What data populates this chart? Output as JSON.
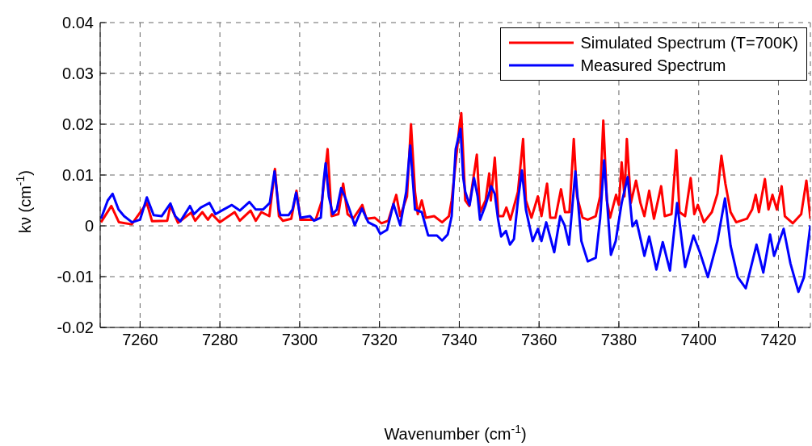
{
  "chart_data": {
    "type": "line",
    "xlabel": "Wavenumber (cm$^{-1}$)",
    "ylabel": "kν (cm$^{-1}$)",
    "xlim": [
      7250,
      7428
    ],
    "xticks": [
      7260,
      7280,
      7300,
      7320,
      7340,
      7360,
      7380,
      7400,
      7420
    ],
    "ylim": [
      -0.02,
      0.04
    ],
    "yticks": [
      -0.02,
      -0.01,
      0,
      0.01,
      0.02,
      0.03,
      0.04
    ],
    "grid": true,
    "legend": "top right",
    "marker": "none",
    "line_style": "solid",
    "series": [
      {
        "name": "Simulated Spectrum (T=700K)",
        "color": "#ff0000",
        "x": [
          7250.2,
          7252.8,
          7254.7,
          7257.9,
          7261.7,
          7263,
          7266.8,
          7267.6,
          7269.5,
          7272.8,
          7273.8,
          7275.6,
          7277,
          7278,
          7280,
          7283.7,
          7285,
          7287.7,
          7289,
          7290.4,
          7292.4,
          7293.8,
          7294.8,
          7295.8,
          7297.9,
          7299.2,
          7300.2,
          7304,
          7305.6,
          7307,
          7308,
          7309.7,
          7310.9,
          7312,
          7313.4,
          7315.7,
          7316.7,
          7318.8,
          7320.5,
          7322.2,
          7324.2,
          7325.2,
          7326.9,
          7327.9,
          7328.9,
          7329.6,
          7330.6,
          7331.6,
          7333.7,
          7335.7,
          7337.4,
          7338.1,
          7340.1,
          7340.5,
          7341.5,
          7342.5,
          7343.2,
          7344.4,
          7345.2,
          7346.6,
          7347.5,
          7347.9,
          7348.9,
          7349.8,
          7351,
          7351.8,
          7352.8,
          7354.7,
          7356,
          7356.7,
          7358.1,
          7359.7,
          7360.6,
          7362,
          7362.8,
          7364.1,
          7365.5,
          7366.5,
          7367.6,
          7368.7,
          7369.5,
          7370.9,
          7372.2,
          7374.2,
          7375.3,
          7376.1,
          7377,
          7377.8,
          7379.3,
          7380,
          7380.7,
          7381.4,
          7382,
          7383,
          7384.3,
          7385.4,
          7386.4,
          7387.6,
          7388.8,
          7390.6,
          7391.5,
          7393.2,
          7394.4,
          7395.2,
          7396.6,
          7398,
          7398.9,
          7399.8,
          7401.3,
          7403.3,
          7404.7,
          7405.7,
          7406.7,
          7408,
          7409.4,
          7412.1,
          7413.4,
          7414.3,
          7415.1,
          7416.6,
          7417.5,
          7418.5,
          7419.6,
          7420.8,
          7421.6,
          7423.6,
          7425.7,
          7427,
          7428
        ],
        "values": [
          0.0007,
          0.0039,
          0.0007,
          0.0003,
          0.0045,
          0.0009,
          0.001,
          0.004,
          0.0006,
          0.0026,
          0.001,
          0.0027,
          0.0012,
          0.0023,
          0.0007,
          0.0027,
          0.001,
          0.003,
          0.001,
          0.0027,
          0.0019,
          0.0112,
          0.0019,
          0.001,
          0.0014,
          0.0069,
          0.0012,
          0.0012,
          0.005,
          0.0151,
          0.0019,
          0.0023,
          0.0083,
          0.0023,
          0.0014,
          0.0041,
          0.0014,
          0.0016,
          0.0005,
          0.001,
          0.0061,
          0.0019,
          0.0058,
          0.02,
          0.0067,
          0.0023,
          0.005,
          0.0016,
          0.0019,
          0.0007,
          0.0019,
          0.005,
          0.02,
          0.0222,
          0.005,
          0.0039,
          0.0076,
          0.014,
          0.0027,
          0.005,
          0.0103,
          0.005,
          0.0134,
          0.0019,
          0.0019,
          0.0036,
          0.0012,
          0.0067,
          0.0171,
          0.005,
          0.0016,
          0.0058,
          0.0019,
          0.0083,
          0.0016,
          0.0016,
          0.0072,
          0.0027,
          0.0027,
          0.0171,
          0.0058,
          0.0016,
          0.0012,
          0.0019,
          0.0058,
          0.0207,
          0.005,
          0.0016,
          0.0061,
          0.0041,
          0.0125,
          0.0058,
          0.0171,
          0.0045,
          0.0089,
          0.0045,
          0.0019,
          0.0069,
          0.0014,
          0.0078,
          0.0019,
          0.0023,
          0.0149,
          0.0027,
          0.0019,
          0.0094,
          0.0023,
          0.0041,
          0.0007,
          0.0027,
          0.0063,
          0.0138,
          0.0083,
          0.0027,
          0.0007,
          0.0014,
          0.0032,
          0.0061,
          0.0027,
          0.0092,
          0.0032,
          0.0061,
          0.0032,
          0.0078,
          0.0019,
          0.0005,
          0.0023,
          0.0089,
          0.0014
        ]
      },
      {
        "name": "Measured Spectrum",
        "color": "#0000ff",
        "x": [
          7250.2,
          7251.9,
          7253.1,
          7254.6,
          7256,
          7258,
          7260,
          7261.7,
          7263.4,
          7265.4,
          7267.6,
          7268.8,
          7270.1,
          7272.5,
          7273.5,
          7275.2,
          7277.4,
          7278.9,
          7280.9,
          7283,
          7285,
          7287.4,
          7289,
          7290.8,
          7292.5,
          7293.7,
          7294.8,
          7295.2,
          7297.2,
          7298.2,
          7299.1,
          7300.2,
          7302.6,
          7303.6,
          7305.3,
          7306,
          7306.5,
          7307.3,
          7308.3,
          7309.3,
          7310.4,
          7311.5,
          7312.7,
          7313.8,
          7315.6,
          7317.2,
          7319.2,
          7320.2,
          7321.9,
          7323.5,
          7325.2,
          7326.7,
          7327.7,
          7328.9,
          7330.6,
          7332.2,
          7334.4,
          7335.7,
          7337.1,
          7338.1,
          7339.1,
          7340.3,
          7341,
          7341.5,
          7342.6,
          7343.7,
          7344.6,
          7345.2,
          7346.6,
          7348,
          7348.9,
          7349.7,
          7350.5,
          7351.7,
          7352.7,
          7353.7,
          7354.7,
          7355.7,
          7356.7,
          7358.4,
          7359.7,
          7360.6,
          7361.8,
          7363.8,
          7365.3,
          7366.4,
          7367.5,
          7369.1,
          7370.6,
          7372.2,
          7374.2,
          7375.3,
          7376.3,
          7378,
          7379.2,
          7380.7,
          7382.2,
          7383.4,
          7384.4,
          7386.4,
          7387.6,
          7389.4,
          7391,
          7392.8,
          7394.6,
          7396.6,
          7398.7,
          7400.3,
          7402.3,
          7404.7,
          7406.6,
          7408,
          7409.8,
          7411.8,
          7414.5,
          7416.2,
          7417.9,
          7418.9,
          7421.3,
          7423,
          7425,
          7426.4,
          7428
        ],
        "values": [
          0.0014,
          0.005,
          0.0063,
          0.0032,
          0.0019,
          0.0007,
          0.0012,
          0.0056,
          0.0021,
          0.0019,
          0.0044,
          0.0019,
          0.0009,
          0.0039,
          0.0023,
          0.0036,
          0.0045,
          0.0023,
          0.0032,
          0.0041,
          0.003,
          0.0047,
          0.0032,
          0.0032,
          0.0045,
          0.0107,
          0.0032,
          0.0021,
          0.0021,
          0.0032,
          0.0065,
          0.0016,
          0.0019,
          0.001,
          0.0016,
          0.0087,
          0.0123,
          0.0058,
          0.0023,
          0.0032,
          0.0074,
          0.0054,
          0.0027,
          0.0001,
          0.0034,
          0.0007,
          -0.0001,
          -0.0016,
          -0.0008,
          0.0043,
          0.0001,
          0.0067,
          0.0158,
          0.0032,
          0.0027,
          -0.0019,
          -0.0019,
          -0.0029,
          -0.0017,
          0.0019,
          0.0151,
          0.0191,
          0.0094,
          0.0067,
          0.0041,
          0.0094,
          0.0058,
          0.0012,
          0.0041,
          0.0078,
          0.0063,
          0.0014,
          -0.0021,
          -0.001,
          -0.0037,
          -0.0026,
          0.005,
          0.0109,
          0.0032,
          -0.003,
          -0.0006,
          -0.003,
          0.0007,
          -0.0052,
          0.0019,
          0.0001,
          -0.0037,
          0.0107,
          -0.003,
          -0.007,
          -0.0063,
          0.0014,
          0.0129,
          -0.0057,
          -0.003,
          0.0045,
          0.0096,
          -0.0001,
          0.001,
          -0.0059,
          -0.0021,
          -0.0086,
          -0.0032,
          -0.0088,
          0.0045,
          -0.0081,
          -0.0019,
          -0.0052,
          -0.0101,
          -0.003,
          0.0054,
          -0.0039,
          -0.0101,
          -0.0123,
          -0.0037,
          -0.0092,
          -0.0017,
          -0.0059,
          -0.0006,
          -0.0074,
          -0.013,
          -0.0101,
          0.0001
        ]
      }
    ]
  }
}
